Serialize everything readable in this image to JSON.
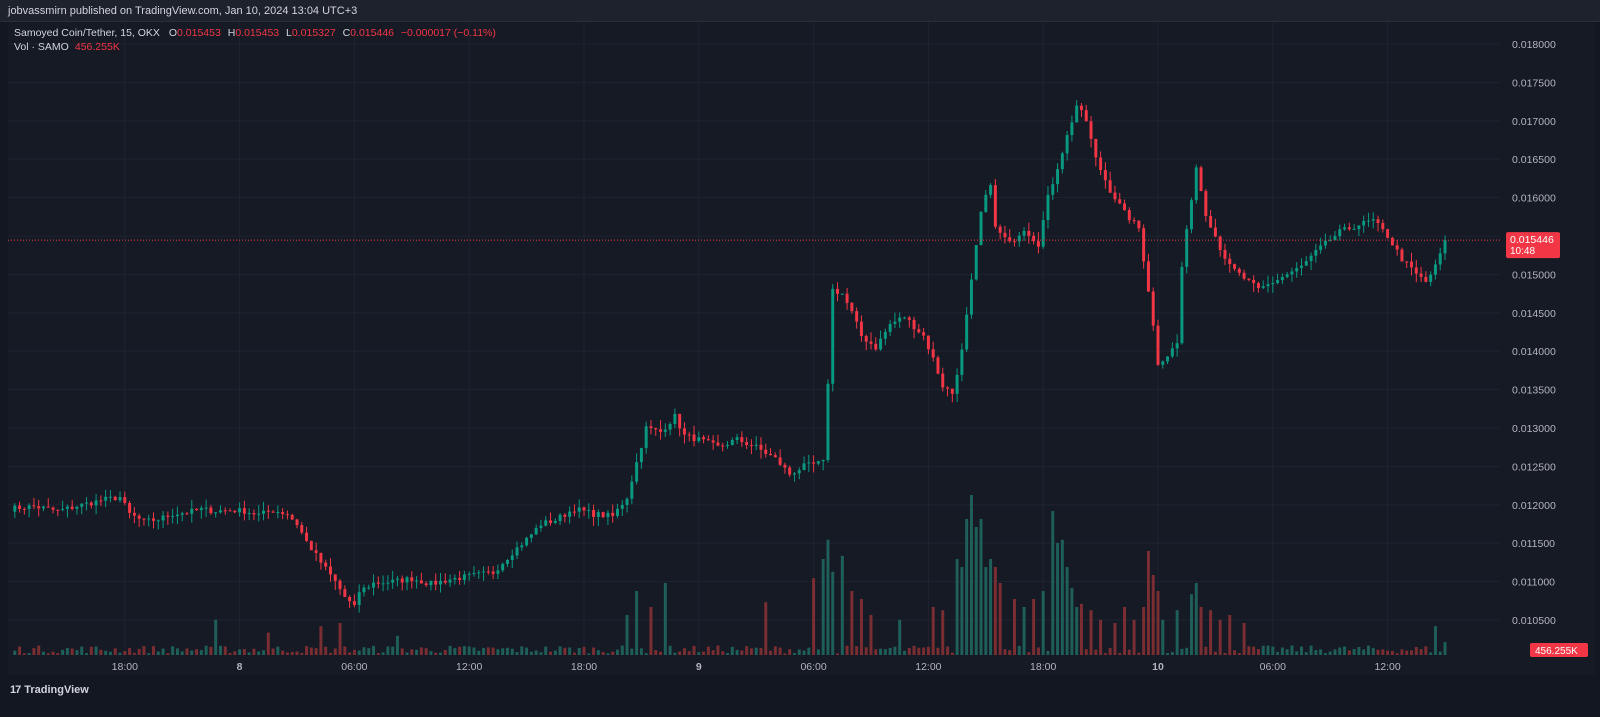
{
  "header": {
    "published_line": "jobvassmirn published on TradingView.com, Jan 10, 2024 13:04 UTC+3"
  },
  "legend": {
    "symbol": "Samoyed Coin/Tether, 15, OKX",
    "o_label": "O",
    "o_value": "0.015453",
    "h_label": "H",
    "h_value": "0.015453",
    "l_label": "L",
    "l_value": "0.015327",
    "c_label": "C",
    "c_value": "0.015446",
    "change": "−0.000017 (−0.11%)",
    "vol_label": "Vol · SAMO",
    "vol_value": "456.255K"
  },
  "price_tag": {
    "price": "0.015446",
    "countdown": "10:48"
  },
  "volume_tag": "456.255K",
  "footer": {
    "brand": "TradingView"
  },
  "colors": {
    "up": "#089981",
    "down": "#f23645",
    "up_volume": "#1e5f5a",
    "down_volume": "#7a2e32",
    "background": "#131722",
    "grid": "#1f2330",
    "axis_text": "#b2b5be"
  },
  "chart_data": {
    "type": "candlestick",
    "symbol": "Samoyed Coin/Tether",
    "interval": "15",
    "exchange": "OKX",
    "y_axis_ticks": [
      "0.010500",
      "0.011000",
      "0.011500",
      "0.012000",
      "0.012500",
      "0.013000",
      "0.013500",
      "0.014000",
      "0.014500",
      "0.015000",
      "0.015500",
      "0.016000",
      "0.016500",
      "0.017000",
      "0.017500",
      "0.018000"
    ],
    "ylim": [
      0.01005,
      0.01825
    ],
    "x_ticks": [
      {
        "label": "18:00",
        "index": 24
      },
      {
        "label": "8",
        "index": 48
      },
      {
        "label": "06:00",
        "index": 72
      },
      {
        "label": "12:00",
        "index": 96
      },
      {
        "label": "18:00",
        "index": 120
      },
      {
        "label": "9",
        "index": 144
      },
      {
        "label": "06:00",
        "index": 168
      },
      {
        "label": "12:00",
        "index": 192
      },
      {
        "label": "18:00",
        "index": 216
      },
      {
        "label": "10",
        "index": 240
      },
      {
        "label": "06:00",
        "index": 264
      },
      {
        "label": "12:00",
        "index": 288
      }
    ],
    "last_price": 0.015446,
    "anchors": [
      [
        0,
        0.01195
      ],
      [
        5,
        0.01198
      ],
      [
        10,
        0.01192
      ],
      [
        15,
        0.012
      ],
      [
        20,
        0.01207
      ],
      [
        23,
        0.0121
      ],
      [
        25,
        0.01188
      ],
      [
        28,
        0.01178
      ],
      [
        31,
        0.01181
      ],
      [
        34,
        0.01188
      ],
      [
        37,
        0.0119
      ],
      [
        40,
        0.01194
      ],
      [
        43,
        0.01192
      ],
      [
        46,
        0.01193
      ],
      [
        49,
        0.01192
      ],
      [
        52,
        0.01187
      ],
      [
        55,
        0.01193
      ],
      [
        58,
        0.01188
      ],
      [
        60,
        0.01175
      ],
      [
        62,
        0.01152
      ],
      [
        65,
        0.01125
      ],
      [
        68,
        0.011
      ],
      [
        70,
        0.0108
      ],
      [
        72,
        0.01066
      ],
      [
        73,
        0.01087
      ],
      [
        76,
        0.01098
      ],
      [
        80,
        0.011
      ],
      [
        84,
        0.01104
      ],
      [
        88,
        0.01097
      ],
      [
        92,
        0.01103
      ],
      [
        97,
        0.01108
      ],
      [
        101,
        0.01112
      ],
      [
        105,
        0.01138
      ],
      [
        108,
        0.01155
      ],
      [
        111,
        0.01175
      ],
      [
        114,
        0.0118
      ],
      [
        118,
        0.01195
      ],
      [
        122,
        0.01188
      ],
      [
        126,
        0.01185
      ],
      [
        129,
        0.0121
      ],
      [
        131,
        0.01255
      ],
      [
        133,
        0.013
      ],
      [
        136,
        0.01295
      ],
      [
        139,
        0.01315
      ],
      [
        141,
        0.0129
      ],
      [
        144,
        0.01285
      ],
      [
        148,
        0.01275
      ],
      [
        152,
        0.01285
      ],
      [
        156,
        0.01275
      ],
      [
        160,
        0.0126
      ],
      [
        163,
        0.0124
      ],
      [
        166,
        0.0125
      ],
      [
        170,
        0.01255
      ],
      [
        171,
        0.0136
      ],
      [
        172,
        0.0148
      ],
      [
        174,
        0.01475
      ],
      [
        176,
        0.0145
      ],
      [
        178,
        0.0142
      ],
      [
        181,
        0.01405
      ],
      [
        184,
        0.01435
      ],
      [
        187,
        0.01445
      ],
      [
        191,
        0.0142
      ],
      [
        193,
        0.0139
      ],
      [
        195,
        0.01355
      ],
      [
        197,
        0.01345
      ],
      [
        199,
        0.014
      ],
      [
        201,
        0.0149
      ],
      [
        203,
        0.0158
      ],
      [
        205,
        0.0162
      ],
      [
        206,
        0.0156
      ],
      [
        209,
        0.0154
      ],
      [
        212,
        0.0156
      ],
      [
        215,
        0.0154
      ],
      [
        217,
        0.016
      ],
      [
        220,
        0.0166
      ],
      [
        223,
        0.0172
      ],
      [
        225,
        0.017
      ],
      [
        227,
        0.0165
      ],
      [
        230,
        0.0161
      ],
      [
        233,
        0.0158
      ],
      [
        236,
        0.0156
      ],
      [
        238,
        0.0148
      ],
      [
        240,
        0.01385
      ],
      [
        242,
        0.01395
      ],
      [
        244,
        0.0141
      ],
      [
        245,
        0.0151
      ],
      [
        247,
        0.016
      ],
      [
        248,
        0.0164
      ],
      [
        250,
        0.0158
      ],
      [
        253,
        0.01535
      ],
      [
        255,
        0.0151
      ],
      [
        258,
        0.01495
      ],
      [
        261,
        0.0148
      ],
      [
        264,
        0.0149
      ],
      [
        267,
        0.015
      ],
      [
        270,
        0.0151
      ],
      [
        274,
        0.01535
      ],
      [
        278,
        0.01555
      ],
      [
        282,
        0.01565
      ],
      [
        285,
        0.0157
      ],
      [
        288,
        0.0155
      ],
      [
        291,
        0.0152
      ],
      [
        294,
        0.015
      ],
      [
        296,
        0.0149
      ],
      [
        298,
        0.0151
      ],
      [
        300,
        0.01544
      ]
    ],
    "volume_spikes": [
      [
        43,
        0.22
      ],
      [
        54,
        0.14
      ],
      [
        65,
        0.18
      ],
      [
        69,
        0.2
      ],
      [
        81,
        0.12
      ],
      [
        129,
        0.25
      ],
      [
        131,
        0.4
      ],
      [
        134,
        0.3
      ],
      [
        137,
        0.45
      ],
      [
        158,
        0.33
      ],
      [
        168,
        0.48
      ],
      [
        170,
        0.6
      ],
      [
        171,
        0.72
      ],
      [
        172,
        0.52
      ],
      [
        174,
        0.62
      ],
      [
        176,
        0.4
      ],
      [
        178,
        0.35
      ],
      [
        180,
        0.25
      ],
      [
        186,
        0.22
      ],
      [
        193,
        0.3
      ],
      [
        195,
        0.28
      ],
      [
        198,
        0.6
      ],
      [
        199,
        0.55
      ],
      [
        200,
        0.85
      ],
      [
        201,
        1.0
      ],
      [
        202,
        0.8
      ],
      [
        203,
        0.85
      ],
      [
        204,
        0.55
      ],
      [
        205,
        0.6
      ],
      [
        206,
        0.55
      ],
      [
        207,
        0.45
      ],
      [
        210,
        0.35
      ],
      [
        212,
        0.3
      ],
      [
        214,
        0.35
      ],
      [
        216,
        0.4
      ],
      [
        218,
        0.9
      ],
      [
        219,
        0.7
      ],
      [
        220,
        0.72
      ],
      [
        221,
        0.55
      ],
      [
        222,
        0.42
      ],
      [
        223,
        0.3
      ],
      [
        224,
        0.32
      ],
      [
        226,
        0.28
      ],
      [
        228,
        0.22
      ],
      [
        231,
        0.2
      ],
      [
        233,
        0.3
      ],
      [
        235,
        0.22
      ],
      [
        237,
        0.3
      ],
      [
        238,
        0.65
      ],
      [
        239,
        0.5
      ],
      [
        240,
        0.4
      ],
      [
        241,
        0.22
      ],
      [
        244,
        0.28
      ],
      [
        247,
        0.38
      ],
      [
        248,
        0.45
      ],
      [
        249,
        0.3
      ],
      [
        251,
        0.28
      ],
      [
        253,
        0.22
      ],
      [
        255,
        0.25
      ],
      [
        258,
        0.2
      ],
      [
        298,
        0.18
      ],
      [
        300,
        0.08
      ]
    ]
  }
}
